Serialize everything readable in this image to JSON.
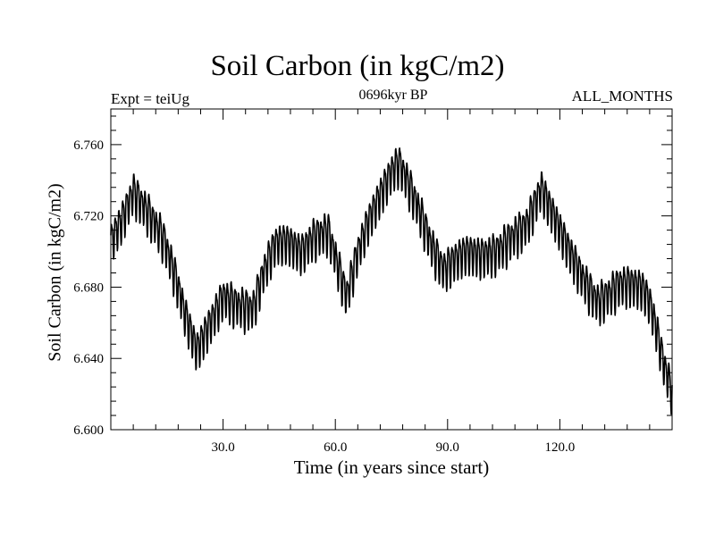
{
  "chart_data": {
    "type": "line",
    "title": "Soil Carbon (in kgC/m2)",
    "subtitle": "0696kyr BP",
    "left_annotation": "Expt = teiUg",
    "right_annotation": "ALL_MONTHS",
    "xlabel": "Time (in years since start)",
    "ylabel": "Soil Carbon (in kgC/m2)",
    "xlim": [
      0,
      150
    ],
    "ylim": [
      6.6,
      6.78
    ],
    "xticks": [
      30.0,
      60.0,
      90.0,
      120.0
    ],
    "xtick_labels": [
      "30.0",
      "60.0",
      "90.0",
      "120.0"
    ],
    "yticks": [
      6.6,
      6.64,
      6.68,
      6.72,
      6.76
    ],
    "ytick_labels": [
      "6.600",
      "6.640",
      "6.680",
      "6.720",
      "6.760"
    ],
    "seasonal_amplitude": 0.01,
    "months_per_year": 12,
    "series": [
      {
        "name": "Soil Carbon",
        "color": "#000000",
        "trend_x": [
          0,
          3,
          6,
          10,
          14,
          17,
          20,
          23,
          27,
          30,
          34,
          38,
          41,
          44,
          47,
          51,
          54,
          58,
          61,
          63,
          66,
          69,
          72,
          75,
          77,
          80,
          83,
          86,
          89,
          92,
          95,
          99,
          103,
          107,
          111,
          113,
          115,
          118,
          121,
          124,
          127,
          130,
          133,
          136,
          139,
          142,
          144,
          146,
          148,
          150
        ],
        "trend_y": [
          6.706,
          6.718,
          6.734,
          6.722,
          6.708,
          6.688,
          6.664,
          6.645,
          6.662,
          6.675,
          6.67,
          6.668,
          6.69,
          6.705,
          6.706,
          6.7,
          6.708,
          6.712,
          6.69,
          6.675,
          6.7,
          6.718,
          6.732,
          6.745,
          6.75,
          6.736,
          6.72,
          6.702,
          6.69,
          6.696,
          6.7,
          6.698,
          6.7,
          6.708,
          6.715,
          6.725,
          6.736,
          6.722,
          6.708,
          6.694,
          6.682,
          6.672,
          6.676,
          6.682,
          6.682,
          6.68,
          6.672,
          6.655,
          6.635,
          6.622
        ]
      }
    ]
  }
}
